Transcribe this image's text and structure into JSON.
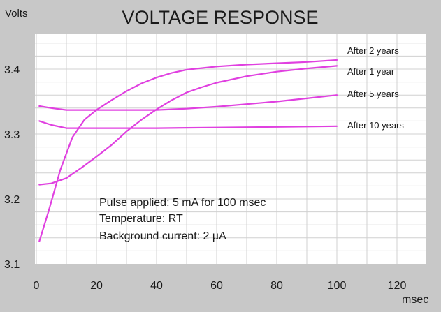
{
  "chart_data": {
    "type": "line",
    "title": "VOLTAGE RESPONSE",
    "ylabel": "Volts",
    "xlabel": "msec",
    "xlim": [
      0,
      130
    ],
    "ylim": [
      3.1,
      3.45
    ],
    "x_ticks": [
      0,
      20,
      40,
      60,
      80,
      100,
      120
    ],
    "y_ticks": [
      3.1,
      3.2,
      3.3,
      3.4
    ],
    "x_tick_labels": [
      "0",
      "20",
      "40",
      "60",
      "80",
      "100",
      "120"
    ],
    "y_tick_labels": [
      "3.1",
      "3.2",
      "3.3",
      "3.4"
    ],
    "grid": true,
    "legend": "labels at right end of each line",
    "series": [
      {
        "name": "After 1 year",
        "x": [
          1,
          5,
          10,
          15,
          20,
          25,
          30,
          35,
          40,
          45,
          50,
          55,
          60,
          70,
          80,
          90,
          100
        ],
        "values": [
          3.222,
          3.224,
          3.232,
          3.248,
          3.265,
          3.283,
          3.304,
          3.322,
          3.338,
          3.352,
          3.364,
          3.372,
          3.379,
          3.389,
          3.396,
          3.401,
          3.405
        ]
      },
      {
        "name": "After 2 years",
        "x": [
          1,
          4,
          8,
          12,
          16,
          20,
          25,
          30,
          35,
          40,
          45,
          50,
          60,
          70,
          80,
          90,
          100
        ],
        "values": [
          3.135,
          3.18,
          3.245,
          3.295,
          3.322,
          3.337,
          3.352,
          3.366,
          3.378,
          3.387,
          3.394,
          3.399,
          3.404,
          3.407,
          3.409,
          3.411,
          3.414
        ]
      },
      {
        "name": "After 5 years",
        "x": [
          1,
          5,
          10,
          15,
          20,
          30,
          40,
          50,
          60,
          70,
          80,
          90,
          100
        ],
        "values": [
          3.343,
          3.34,
          3.337,
          3.337,
          3.337,
          3.337,
          3.337,
          3.339,
          3.342,
          3.346,
          3.35,
          3.355,
          3.36
        ]
      },
      {
        "name": "After 10 years",
        "x": [
          1,
          5,
          10,
          15,
          20,
          40,
          60,
          80,
          100
        ],
        "values": [
          3.32,
          3.314,
          3.309,
          3.309,
          3.309,
          3.309,
          3.31,
          3.311,
          3.312
        ]
      }
    ],
    "annotation_lines": [
      "Pulse applied: 5 mA for 100 msec",
      "Temperature: RT",
      "Background current: 2 µA"
    ]
  },
  "colors": {
    "background": "#c8c8c8",
    "plot_area": "#ffffff",
    "grid": "#d0d0d0",
    "line": "#e040e0"
  }
}
